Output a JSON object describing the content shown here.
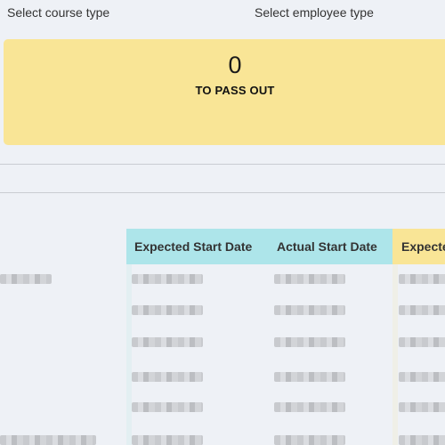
{
  "filters": {
    "course_type_label": "Select course type",
    "employee_type_label": "Select employee type"
  },
  "summary": {
    "count": "0",
    "caption": "TO PASS OUT",
    "color": "#f9e596"
  },
  "table": {
    "columns": [
      "Expected Start Date",
      "Actual Start Date",
      "Expecte"
    ],
    "header_colors": [
      "#ade5ea",
      "#ade5ea",
      "#f9e596"
    ],
    "rows_note_redacted": true
  }
}
